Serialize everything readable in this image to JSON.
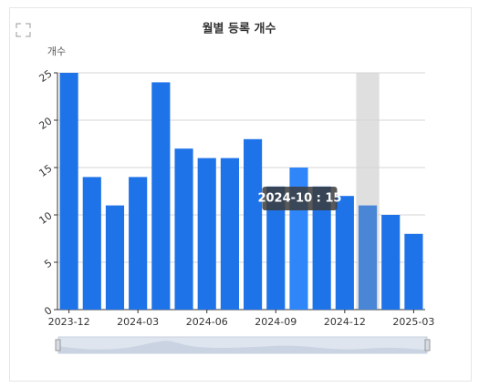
{
  "chart_data": {
    "type": "bar",
    "title": "월별 등록 개수",
    "y_label": "개수",
    "categories": [
      "2023-12",
      null,
      null,
      "2024-03",
      null,
      null,
      "2024-06",
      null,
      null,
      "2024-09",
      null,
      null,
      "2024-12",
      null,
      null,
      "2025-03"
    ],
    "values": [
      25,
      14,
      11,
      14,
      24,
      17,
      16,
      16,
      18,
      13,
      15,
      13,
      12,
      11,
      10,
      8
    ],
    "color": "#1f73e8",
    "ylim": [
      0,
      25
    ],
    "yticks": [
      0,
      5,
      10,
      15,
      20,
      25
    ],
    "grid": true,
    "tooltip": "2024-10 : 15"
  }
}
